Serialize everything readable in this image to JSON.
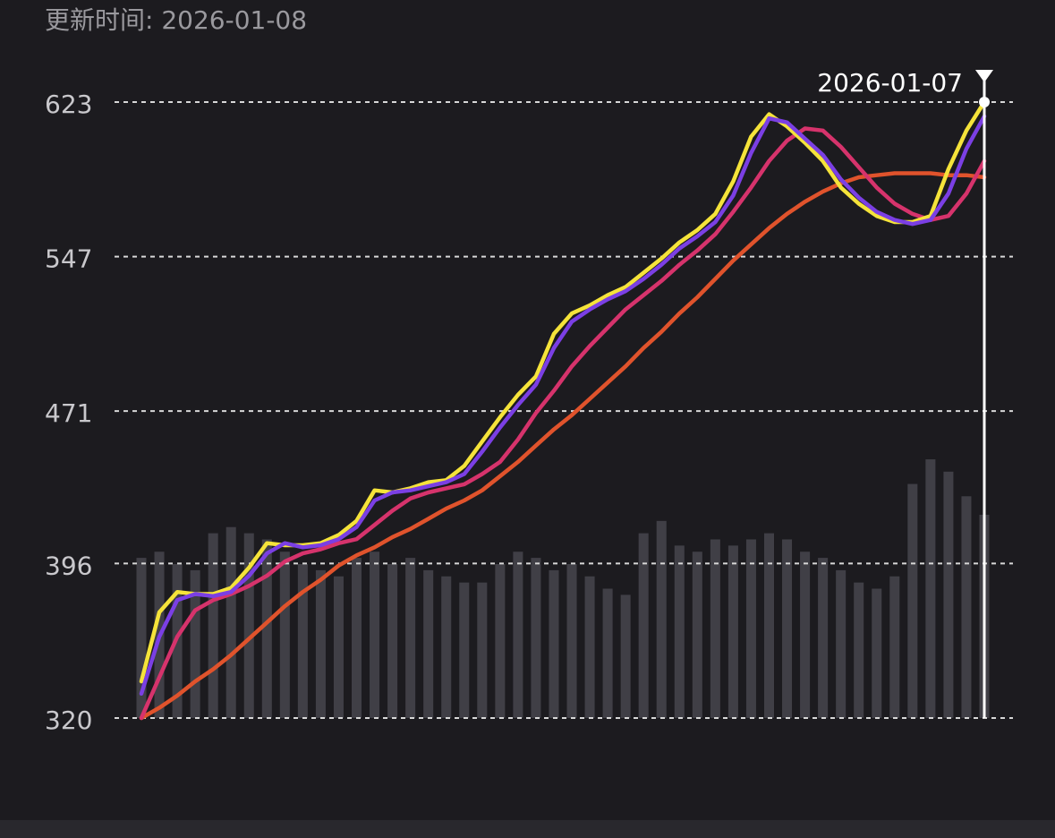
{
  "header": {
    "title": "更新时间: 2026-01-08"
  },
  "chart_data": {
    "type": "line",
    "categories": [
      null,
      null,
      null,
      null,
      null,
      null,
      null,
      null,
      null,
      null,
      null,
      null,
      null,
      null,
      null,
      null,
      null,
      null,
      null,
      null,
      null,
      null,
      null,
      null,
      null,
      null,
      null,
      null,
      null,
      null,
      null,
      null,
      null,
      null,
      null,
      null,
      null,
      null,
      null,
      null,
      null,
      null,
      null,
      null,
      null,
      null,
      null,
      "2026-01-07"
    ],
    "ylim": [
      320,
      623
    ],
    "yticks": [
      320,
      396,
      471,
      547,
      623
    ],
    "y2lim": [
      0,
      100
    ],
    "grid": true,
    "series": [
      {
        "type": "bar",
        "axis": "y2",
        "color": "#4a4850",
        "values": [
          26,
          27,
          25,
          24,
          30,
          31,
          30,
          29,
          27,
          25,
          24,
          23,
          26,
          27,
          25,
          26,
          24,
          23,
          22,
          22,
          25,
          27,
          26,
          24,
          25,
          23,
          21,
          20,
          30,
          32,
          28,
          27,
          29,
          28,
          29,
          30,
          29,
          27,
          26,
          24,
          22,
          21,
          23,
          38,
          42,
          40,
          36,
          33
        ]
      },
      {
        "color": "#e0532c",
        "values": [
          320,
          325,
          331,
          338,
          344,
          351,
          359,
          367,
          375,
          382,
          388,
          395,
          400,
          404,
          409,
          413,
          418,
          423,
          427,
          432,
          439,
          446,
          454,
          462,
          469,
          477,
          485,
          493,
          502,
          510,
          519,
          527,
          536,
          545,
          553,
          561,
          568,
          574,
          579,
          583,
          586,
          587,
          588,
          588,
          588,
          587,
          587,
          586
        ]
      },
      {
        "color": "#d6336c",
        "values": [
          320,
          340,
          360,
          373,
          378,
          381,
          385,
          390,
          397,
          401,
          403,
          406,
          408,
          415,
          422,
          428,
          431,
          433,
          435,
          440,
          446,
          457,
          470,
          481,
          493,
          503,
          512,
          521,
          528,
          535,
          543,
          550,
          558,
          569,
          581,
          594,
          604,
          610,
          609,
          601,
          591,
          581,
          573,
          568,
          565,
          567,
          578,
          594
        ]
      },
      {
        "color": "#f5e33a",
        "values": [
          338,
          372,
          382,
          381,
          381,
          384,
          394,
          406,
          405,
          405,
          406,
          410,
          417,
          432,
          431,
          433,
          436,
          437,
          444,
          456,
          468,
          479,
          488,
          509,
          519,
          523,
          528,
          532,
          539,
          546,
          554,
          560,
          568,
          584,
          606,
          617,
          611,
          603,
          594,
          581,
          573,
          567,
          564,
          564,
          567,
          590,
          609,
          623
        ]
      },
      {
        "color": "#7b3fe4",
        "values": [
          332,
          360,
          378,
          381,
          380,
          382,
          390,
          401,
          406,
          404,
          405,
          408,
          414,
          427,
          431,
          432,
          434,
          436,
          440,
          451,
          463,
          474,
          484,
          502,
          515,
          521,
          526,
          530,
          536,
          543,
          551,
          557,
          564,
          577,
          598,
          615,
          613,
          605,
          597,
          585,
          576,
          569,
          565,
          563,
          565,
          578,
          600,
          616
        ]
      }
    ]
  }
}
